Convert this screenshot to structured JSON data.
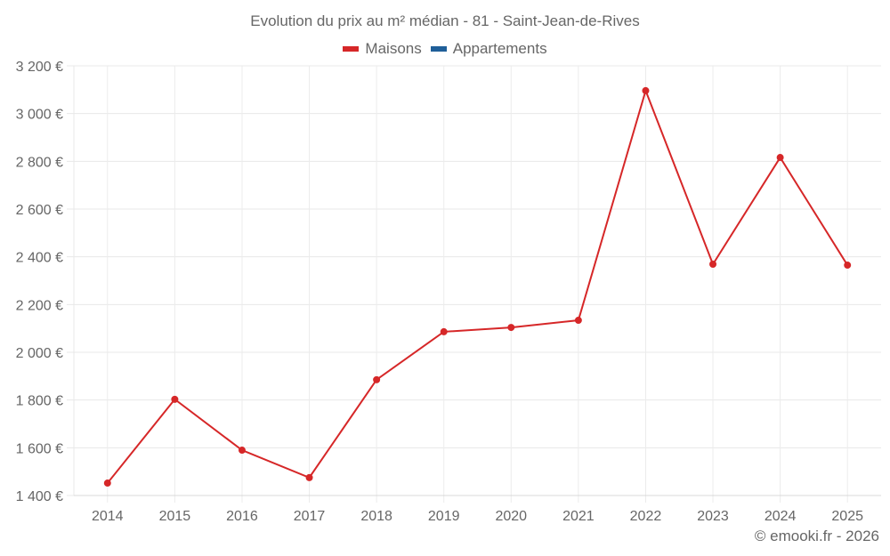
{
  "chart_data": {
    "type": "line",
    "title": "Evolution du prix au m² médian - 81 - Saint-Jean-de-Rives",
    "xlabel": "",
    "ylabel": "",
    "categories": [
      "2014",
      "2015",
      "2016",
      "2017",
      "2018",
      "2019",
      "2020",
      "2021",
      "2022",
      "2023",
      "2024",
      "2025"
    ],
    "series": [
      {
        "name": "Maisons",
        "color": "#d62728",
        "values": [
          1452,
          1803,
          1590,
          1475,
          1885,
          2086,
          2104,
          2134,
          3096,
          2369,
          2816,
          2365
        ]
      },
      {
        "name": "Appartements",
        "color": "#1f5f99",
        "values": []
      }
    ],
    "ylim": [
      1400,
      3200
    ],
    "yticks": [
      1400,
      1600,
      1800,
      2000,
      2200,
      2400,
      2600,
      2800,
      3000,
      3200
    ],
    "ytick_labels": [
      "1 400 €",
      "1 600 €",
      "1 800 €",
      "2 000 €",
      "2 200 €",
      "2 400 €",
      "2 600 €",
      "2 800 €",
      "3 000 €",
      "3 200 €"
    ],
    "grid": true,
    "legend_position": "top"
  },
  "legend": [
    {
      "label": "Maisons",
      "color": "#d62728"
    },
    {
      "label": "Appartements",
      "color": "#1f5f99"
    }
  ],
  "credit": "© emooki.fr - 2026"
}
